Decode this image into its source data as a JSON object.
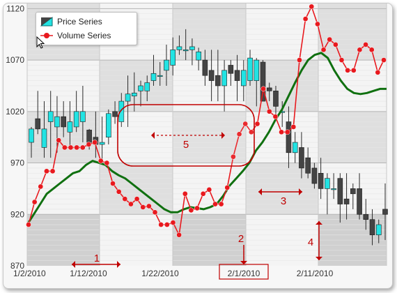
{
  "chart_data": {
    "type": "line",
    "y_ticks": [
      "1120",
      "1070",
      "1020",
      "970",
      "920",
      "870"
    ],
    "ylim": [
      870,
      1125
    ],
    "x_ticks": [
      "1/2/2010",
      "1/12/2010",
      "1/22/2010",
      "2/1/2010",
      "2/11/2010"
    ],
    "series": [
      {
        "name": "Price Series",
        "kind": "candlestick",
        "color_up": "#22e3e3",
        "color_down": "#444444",
        "ohlc": [
          [
            990,
            1003,
            975,
            1005
          ],
          [
            1013,
            1003,
            1040,
            998
          ],
          [
            985,
            1003,
            1030,
            975
          ],
          [
            1010,
            1020,
            1040,
            975
          ],
          [
            1005,
            1015,
            1035,
            980
          ],
          [
            1015,
            1005,
            1030,
            995
          ],
          [
            1000,
            1010,
            1030,
            985
          ],
          [
            1005,
            1020,
            1040,
            1000
          ],
          [
            1010,
            1020,
            1045,
            990
          ],
          [
            1002,
            990,
            1003,
            983
          ],
          [
            995,
            988,
            1020,
            975
          ],
          [
            988,
            990,
            1015,
            970
          ],
          [
            995,
            1018,
            1022,
            988
          ],
          [
            1020,
            1015,
            1030,
            1008
          ],
          [
            1010,
            1030,
            1038,
            1005
          ],
          [
            1030,
            1037,
            1055,
            1005
          ],
          [
            1035,
            1038,
            1058,
            1020
          ],
          [
            1040,
            1045,
            1050,
            1025
          ],
          [
            1040,
            1048,
            1055,
            1030
          ],
          [
            1050,
            1057,
            1075,
            1045
          ],
          [
            1055,
            1055,
            1068,
            1045
          ],
          [
            1060,
            1070,
            1085,
            1045
          ],
          [
            1065,
            1080,
            1092,
            1055
          ],
          [
            1080,
            1083,
            1094,
            1075
          ],
          [
            1080,
            1080,
            1100,
            1070
          ],
          [
            1080,
            1083,
            1091,
            1065
          ],
          [
            1070,
            1078,
            1082,
            1060
          ],
          [
            1070,
            1055,
            1080,
            1045
          ],
          [
            1060,
            1050,
            1080,
            1030
          ],
          [
            1055,
            1045,
            1080,
            1030
          ],
          [
            1045,
            1060,
            1070,
            1020
          ],
          [
            1065,
            1057,
            1070,
            1045
          ],
          [
            1060,
            1050,
            1075,
            1030
          ],
          [
            1045,
            1060,
            1070,
            1030
          ],
          [
            1050,
            1072,
            1080,
            1045
          ],
          [
            1050,
            1070,
            1072,
            1025
          ],
          [
            1068,
            1030,
            1070,
            1030
          ],
          [
            1043,
            1040,
            1048,
            1030
          ],
          [
            1040,
            1025,
            1045,
            1015
          ],
          [
            1020,
            1020,
            1030,
            1005
          ],
          [
            1010,
            980,
            1025,
            965
          ],
          [
            980,
            990,
            1000,
            970
          ],
          [
            985,
            965,
            1000,
            955
          ],
          [
            975,
            960,
            985,
            955
          ],
          [
            965,
            950,
            970,
            945
          ],
          [
            960,
            945,
            975,
            935
          ],
          [
            945,
            955,
            960,
            920
          ],
          [
            945,
            945,
            960,
            935
          ],
          [
            955,
            930,
            960,
            912
          ],
          [
            935,
            930,
            960,
            915
          ],
          [
            945,
            940,
            950,
            925
          ],
          [
            945,
            920,
            960,
            915
          ],
          [
            920,
            915,
            935,
            905
          ],
          [
            915,
            900,
            925,
            890
          ],
          [
            900,
            910,
            915,
            892
          ],
          [
            925,
            920,
            950,
            895
          ]
        ]
      },
      {
        "name": "Volume Series",
        "kind": "line-markers",
        "color": "#e8191e",
        "values": [
          910,
          932,
          947,
          962,
          962,
          992,
          985,
          985,
          985,
          985,
          988,
          990,
          972,
          970,
          950,
          942,
          935,
          930,
          935,
          927,
          928,
          922,
          910,
          910,
          912,
          900,
          940,
          924,
          926,
          940,
          944,
          930,
          930,
          946,
          976,
          998,
          1008,
          1000,
          1008,
          1042,
          1020,
          1015,
          1000,
          1000,
          1005,
          1070,
          1110,
          1122,
          1105,
          1080,
          1090,
          1085,
          1070,
          1060,
          1060,
          1080,
          1085,
          1080,
          1058,
          1070
        ]
      },
      {
        "name": "",
        "kind": "line",
        "color": "#107010",
        "values": [
          910,
          920,
          930,
          940,
          945,
          950,
          955,
          960,
          962,
          968,
          972,
          970,
          968,
          962,
          958,
          955,
          950,
          945,
          940,
          935,
          930,
          925,
          922,
          922,
          925,
          927,
          926,
          925,
          927,
          930,
          938,
          948,
          955,
          962,
          970,
          982,
          990,
          1000,
          1012,
          1022,
          1035,
          1048,
          1060,
          1070,
          1075,
          1077,
          1072,
          1060,
          1050,
          1042,
          1038,
          1037,
          1038,
          1040,
          1042,
          1042
        ]
      }
    ],
    "annotations": [
      {
        "label": "1",
        "color": "#c00000"
      },
      {
        "label": "2",
        "color": "#c00000"
      },
      {
        "label": "3",
        "color": "#c00000"
      },
      {
        "label": "4",
        "color": "#c00000"
      },
      {
        "label": "5",
        "color": "#c00000"
      }
    ],
    "highlight_tick": "2/1/2010",
    "grid": true,
    "legend_position": "top-left"
  },
  "colors": {
    "band_dark": "#d0d0d0",
    "band_mid": "#dfdfdf",
    "band_light": "#f4f4f4",
    "accent": "#c00000"
  }
}
